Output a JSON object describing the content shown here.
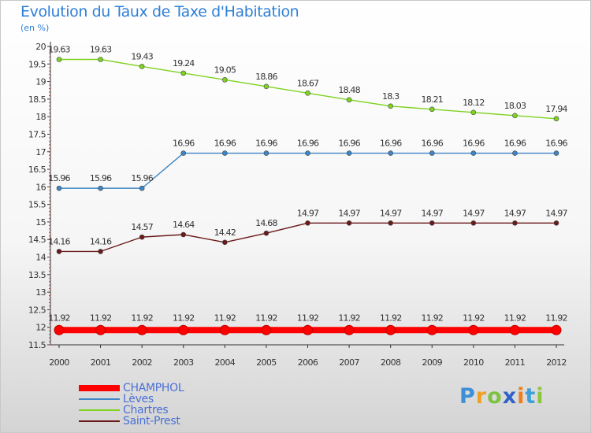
{
  "header": {
    "title": "Evolution du Taux de Taxe d'Habitation",
    "subtitle": "(en %)"
  },
  "chart_data": {
    "type": "line",
    "title": "Evolution du Taux de Taxe d'Habitation",
    "ylabel": "(en %)",
    "xlabel": "",
    "x": [
      "2000",
      "2001",
      "2002",
      "2003",
      "2004",
      "2005",
      "2006",
      "2007",
      "2008",
      "2009",
      "2010",
      "2011",
      "2012"
    ],
    "ylim": [
      11.5,
      20
    ],
    "yticks": [
      "11.5",
      "12",
      "12.5",
      "13",
      "13.5",
      "14",
      "14.5",
      "15",
      "15.5",
      "16",
      "16.5",
      "17",
      "17.5",
      "18",
      "18.5",
      "19",
      "19.5",
      "20"
    ],
    "grid": false,
    "legend_position": "bottom-left",
    "series": [
      {
        "name": "CHAMPHOL",
        "color": "#ff0000",
        "values": [
          11.92,
          11.92,
          11.92,
          11.92,
          11.92,
          11.92,
          11.92,
          11.92,
          11.92,
          11.92,
          11.92,
          11.92,
          11.92
        ],
        "labels": [
          "11.92",
          "11.92",
          "11.92",
          "11.92",
          "11.92",
          "11.92",
          "11.92",
          "11.92",
          "11.92",
          "11.92",
          "11.92",
          "11.92",
          "11.92"
        ]
      },
      {
        "name": "Lèves",
        "color": "#3d85c6",
        "values": [
          15.96,
          15.96,
          15.96,
          16.96,
          16.96,
          16.96,
          16.96,
          16.96,
          16.96,
          16.96,
          16.96,
          16.96,
          16.96
        ],
        "labels": [
          "15.96",
          "15.96",
          "15.96",
          "16.96",
          "16.96",
          "16.96",
          "16.96",
          "16.96",
          "16.96",
          "16.96",
          "16.96",
          "16.96",
          "16.96"
        ]
      },
      {
        "name": "Chartres",
        "color": "#7ed321",
        "values": [
          19.63,
          19.63,
          19.43,
          19.24,
          19.05,
          18.86,
          18.67,
          18.48,
          18.3,
          18.21,
          18.12,
          18.03,
          17.94
        ],
        "labels": [
          "19.63",
          "19.63",
          "19.43",
          "19.24",
          "19.05",
          "18.86",
          "18.67",
          "18.48",
          "18.3",
          "18.21",
          "18.12",
          "18.03",
          "17.94"
        ]
      },
      {
        "name": "Saint-Prest",
        "color": "#6b1a1a",
        "values": [
          14.16,
          14.16,
          14.57,
          14.64,
          14.42,
          14.68,
          14.97,
          14.97,
          14.97,
          14.97,
          14.97,
          14.97,
          14.97
        ],
        "labels": [
          "14.16",
          "14.16",
          "14.57",
          "14.64",
          "14.42",
          "14.68",
          "14.97",
          "14.97",
          "14.97",
          "14.97",
          "14.97",
          "14.97",
          "14.97"
        ]
      }
    ]
  },
  "legend": {
    "items": [
      {
        "label": "CHAMPHOL",
        "color": "#ff0000"
      },
      {
        "label": "Lèves",
        "color": "#3d85c6"
      },
      {
        "label": "Chartres",
        "color": "#7ed321"
      },
      {
        "label": "Saint-Prest",
        "color": "#6b1a1a"
      }
    ]
  },
  "logo": {
    "letters": [
      "P",
      "r",
      "o",
      "x",
      "i",
      "t",
      "i"
    ],
    "colors": [
      "#3d8fd6",
      "#f0a020",
      "#7ec242",
      "#2f63c9",
      "#f07d1a",
      "#3da0d6",
      "#8cc63f"
    ]
  }
}
